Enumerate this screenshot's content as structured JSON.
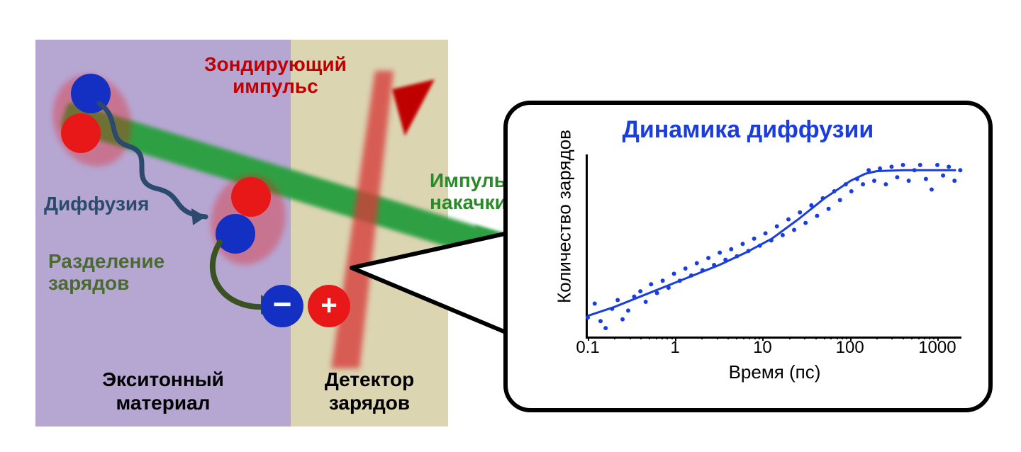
{
  "left_diagram": {
    "regions": {
      "exciton": {
        "bg": "#b6a6d2",
        "label": "Экситонный\nматериал"
      },
      "detector": {
        "bg": "#dcd5b2",
        "label": "Детектор\nзарядов"
      }
    },
    "labels": {
      "probe": {
        "text": "Зондирующий\nимпульс",
        "color": "#c00000"
      },
      "pump": {
        "text": "Импульс\nнакачки",
        "color": "#2a8a2a"
      },
      "diffusion": {
        "text": "Диффузия",
        "color": "#2c4a6e"
      },
      "separation": {
        "text": "Разделение\nзарядов",
        "color": "#4a6b2f"
      }
    },
    "charges": {
      "minus": {
        "fill": "#1330c2",
        "sign": "−"
      },
      "plus": {
        "fill": "#e81818",
        "sign": "+"
      }
    },
    "exciton_pair": {
      "halo_color": "rgba(232,24,24,0.35)",
      "blue": "#1330c2",
      "red": "#e81818"
    },
    "beams": {
      "green": "#2ea043",
      "red": "#d63a3a"
    },
    "arrows": {
      "diffusion_color": "#2c4a6e",
      "separation_color": "#3a5221"
    }
  },
  "chart": {
    "title": "Динамика диффузии",
    "title_color": "#1a3de0",
    "ylabel": "Количество зарядов",
    "xlabel": "Время (пс)",
    "x_log": true,
    "xlim": [
      0.1,
      2000
    ],
    "xticks": [
      0.1,
      1,
      10,
      100,
      1000
    ],
    "xtick_labels": [
      "0.1",
      "1",
      "10",
      "100",
      "1000"
    ],
    "ylim": [
      0,
      1.05
    ],
    "series_color": "#1a3de0",
    "fit_color": "#1a3de0",
    "fit_width": 3,
    "point_size": 6,
    "points": [
      [
        0.1,
        0.12
      ],
      [
        0.12,
        0.2
      ],
      [
        0.14,
        0.1
      ],
      [
        0.16,
        0.06
      ],
      [
        0.19,
        0.17
      ],
      [
        0.22,
        0.22
      ],
      [
        0.25,
        0.11
      ],
      [
        0.29,
        0.16
      ],
      [
        0.34,
        0.24
      ],
      [
        0.4,
        0.27
      ],
      [
        0.46,
        0.21
      ],
      [
        0.53,
        0.31
      ],
      [
        0.62,
        0.26
      ],
      [
        0.72,
        0.33
      ],
      [
        0.84,
        0.29
      ],
      [
        0.97,
        0.37
      ],
      [
        1.13,
        0.33
      ],
      [
        1.31,
        0.4
      ],
      [
        1.53,
        0.36
      ],
      [
        1.77,
        0.43
      ],
      [
        2.06,
        0.39
      ],
      [
        2.4,
        0.46
      ],
      [
        2.79,
        0.42
      ],
      [
        3.24,
        0.49
      ],
      [
        3.77,
        0.45
      ],
      [
        4.38,
        0.51
      ],
      [
        5.1,
        0.47
      ],
      [
        5.93,
        0.54
      ],
      [
        6.89,
        0.5
      ],
      [
        8.01,
        0.57
      ],
      [
        9.32,
        0.53
      ],
      [
        10.8,
        0.6
      ],
      [
        12.6,
        0.56
      ],
      [
        14.6,
        0.64
      ],
      [
        17.0,
        0.59
      ],
      [
        19.8,
        0.68
      ],
      [
        23.0,
        0.62
      ],
      [
        26.8,
        0.72
      ],
      [
        31.1,
        0.66
      ],
      [
        36.2,
        0.76
      ],
      [
        42.1,
        0.7
      ],
      [
        49.0,
        0.8
      ],
      [
        57.0,
        0.74
      ],
      [
        66.2,
        0.84
      ],
      [
        77.0,
        0.79
      ],
      [
        89.6,
        0.88
      ],
      [
        104,
        0.84
      ],
      [
        121,
        0.91
      ],
      [
        141,
        0.88
      ],
      [
        164,
        0.96
      ],
      [
        190,
        0.9
      ],
      [
        221,
        0.97
      ],
      [
        258,
        0.88
      ],
      [
        300,
        0.98
      ],
      [
        348,
        0.92
      ],
      [
        405,
        0.99
      ],
      [
        471,
        0.9
      ],
      [
        548,
        0.96
      ],
      [
        637,
        0.99
      ],
      [
        741,
        0.91
      ],
      [
        862,
        0.85
      ],
      [
        1002,
        0.99
      ],
      [
        1165,
        0.93
      ],
      [
        1355,
        0.98
      ],
      [
        1576,
        0.9
      ],
      [
        1833,
        0.96
      ]
    ],
    "fit": [
      [
        0.1,
        0.13
      ],
      [
        0.2,
        0.18
      ],
      [
        0.4,
        0.24
      ],
      [
        0.8,
        0.3
      ],
      [
        1.6,
        0.36
      ],
      [
        3.2,
        0.42
      ],
      [
        6.4,
        0.49
      ],
      [
        12.8,
        0.57
      ],
      [
        25.6,
        0.68
      ],
      [
        51.2,
        0.8
      ],
      [
        102,
        0.9
      ],
      [
        150,
        0.94
      ],
      [
        204,
        0.955
      ],
      [
        409,
        0.96
      ],
      [
        819,
        0.96
      ],
      [
        1638,
        0.96
      ]
    ]
  }
}
